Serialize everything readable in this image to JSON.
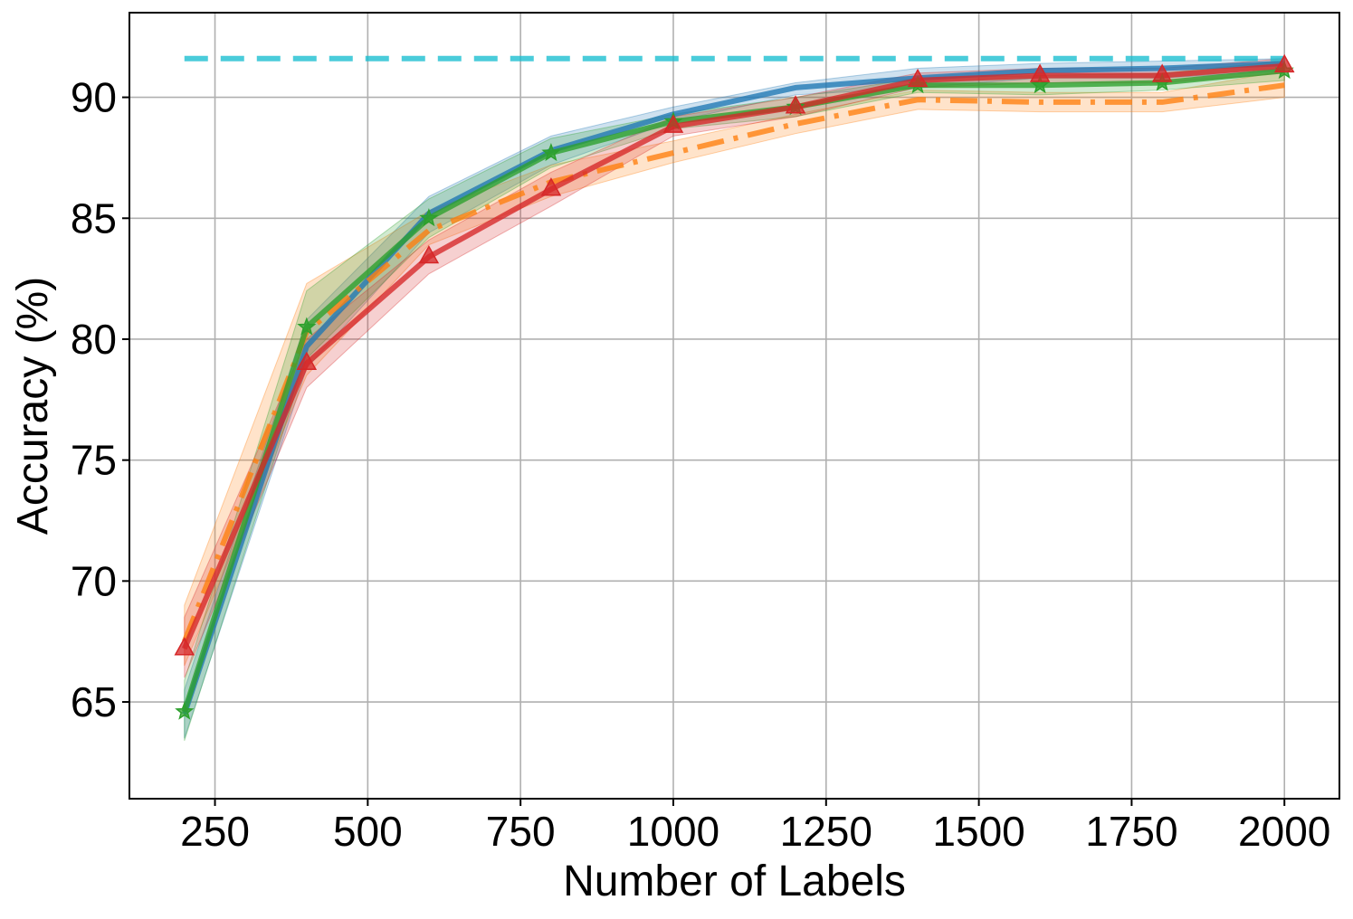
{
  "chart_data": {
    "type": "line",
    "xlabel": "Number of Labels",
    "ylabel": "Accuracy (%)",
    "xlim": [
      110,
      2090
    ],
    "ylim": [
      61.0,
      93.5
    ],
    "xticks": [
      250,
      500,
      750,
      1000,
      1250,
      1500,
      1750,
      2000
    ],
    "yticks": [
      65,
      70,
      75,
      80,
      85,
      90
    ],
    "grid": true,
    "legend": "none",
    "x": [
      200,
      400,
      600,
      800,
      1000,
      1200,
      1400,
      1600,
      1800,
      2000
    ],
    "series": [
      {
        "color": "#1f77b4",
        "style": "solid",
        "marker": "none",
        "values": [
          64.5,
          79.7,
          85.2,
          87.8,
          89.3,
          90.4,
          90.8,
          91.1,
          91.2,
          91.4
        ],
        "band": [
          [
            63.5,
            65.5
          ],
          [
            78.8,
            80.8
          ],
          [
            84.4,
            85.9
          ],
          [
            87.2,
            88.4
          ],
          [
            89.0,
            89.6
          ],
          [
            90.1,
            90.6
          ],
          [
            90.4,
            91.2
          ],
          [
            90.8,
            91.4
          ],
          [
            90.8,
            91.5
          ],
          [
            91.1,
            91.6
          ]
        ]
      },
      {
        "color": "#ff7f0e",
        "style": "dashdot",
        "marker": "none",
        "values": [
          67.5,
          80.3,
          84.5,
          86.5,
          87.7,
          88.9,
          89.9,
          89.8,
          89.8,
          90.5
        ],
        "band": [
          [
            66.5,
            69.0
          ],
          [
            78.5,
            82.3
          ],
          [
            83.9,
            85.3
          ],
          [
            85.9,
            87.2
          ],
          [
            87.3,
            88.2
          ],
          [
            88.5,
            89.3
          ],
          [
            89.5,
            90.3
          ],
          [
            89.4,
            90.2
          ],
          [
            89.4,
            90.2
          ],
          [
            90.0,
            91.1
          ]
        ]
      },
      {
        "color": "#2ca02c",
        "style": "solid",
        "marker": "star",
        "values": [
          64.6,
          80.5,
          85.0,
          87.7,
          89.0,
          89.6,
          90.5,
          90.5,
          90.6,
          91.1
        ],
        "band": [
          [
            63.4,
            65.9
          ],
          [
            79.2,
            82.0
          ],
          [
            84.2,
            85.8
          ],
          [
            87.1,
            88.3
          ],
          [
            88.7,
            89.3
          ],
          [
            89.2,
            90.0
          ],
          [
            90.2,
            90.8
          ],
          [
            90.1,
            90.9
          ],
          [
            90.3,
            91.0
          ],
          [
            90.7,
            91.5
          ]
        ]
      },
      {
        "color": "#d62728",
        "style": "solid",
        "marker": "triangle",
        "values": [
          67.2,
          79.0,
          83.4,
          86.2,
          88.8,
          89.6,
          90.7,
          90.9,
          90.9,
          91.3
        ],
        "band": [
          [
            66.0,
            68.5
          ],
          [
            78.0,
            80.0
          ],
          [
            82.7,
            84.1
          ],
          [
            85.5,
            86.9
          ],
          [
            88.4,
            89.2
          ],
          [
            89.2,
            90.0
          ],
          [
            90.4,
            91.0
          ],
          [
            90.6,
            91.2
          ],
          [
            90.6,
            91.2
          ],
          [
            91.0,
            91.6
          ]
        ]
      },
      {
        "color": "#17becf",
        "style": "dashed",
        "marker": "none",
        "x": [
          200,
          2000
        ],
        "values": [
          91.6,
          91.6
        ]
      }
    ]
  }
}
